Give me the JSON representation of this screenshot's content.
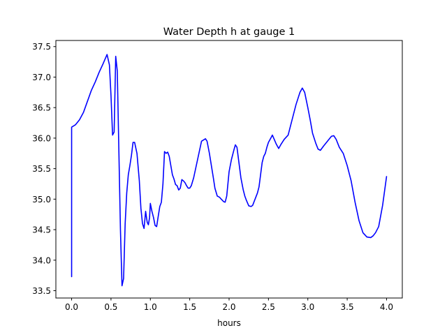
{
  "chart_data": {
    "type": "line",
    "title": "Water Depth h at gauge 1",
    "xlabel": "hours",
    "ylabel": "",
    "xlim": [
      -0.2,
      4.2
    ],
    "ylim": [
      33.38,
      37.6
    ],
    "xticks": [
      0.0,
      0.5,
      1.0,
      1.5,
      2.0,
      2.5,
      3.0,
      3.5,
      4.0
    ],
    "xtick_labels": [
      "0.0",
      "0.5",
      "1.0",
      "1.5",
      "2.0",
      "2.5",
      "3.0",
      "3.5",
      "4.0"
    ],
    "yticks": [
      33.5,
      34.0,
      34.5,
      35.0,
      35.5,
      36.0,
      36.5,
      37.0,
      37.5
    ],
    "ytick_labels": [
      "33.5",
      "34.0",
      "34.5",
      "35.0",
      "35.5",
      "36.0",
      "36.5",
      "37.0",
      "37.5"
    ],
    "grid": false,
    "line_color": "#0000ff",
    "series": [
      {
        "name": "",
        "x": [
          0.0,
          0.0,
          0.0,
          0.05,
          0.1,
          0.15,
          0.2,
          0.25,
          0.3,
          0.35,
          0.4,
          0.45,
          0.48,
          0.5,
          0.52,
          0.54,
          0.56,
          0.58,
          0.6,
          0.62,
          0.64,
          0.66,
          0.68,
          0.7,
          0.72,
          0.74,
          0.76,
          0.78,
          0.8,
          0.83,
          0.86,
          0.88,
          0.9,
          0.92,
          0.94,
          0.96,
          0.975,
          0.99,
          1.0,
          1.02,
          1.04,
          1.06,
          1.08,
          1.1,
          1.12,
          1.14,
          1.16,
          1.18,
          1.2,
          1.22,
          1.24,
          1.26,
          1.28,
          1.3,
          1.32,
          1.34,
          1.36,
          1.38,
          1.4,
          1.42,
          1.44,
          1.46,
          1.48,
          1.5,
          1.52,
          1.55,
          1.6,
          1.65,
          1.7,
          1.72,
          1.75,
          1.8,
          1.82,
          1.85,
          1.88,
          1.9,
          1.93,
          1.95,
          1.97,
          2.0,
          2.03,
          2.06,
          2.08,
          2.1,
          2.13,
          2.15,
          2.18,
          2.2,
          2.22,
          2.25,
          2.28,
          2.3,
          2.33,
          2.36,
          2.38,
          2.4,
          2.42,
          2.44,
          2.46,
          2.48,
          2.5,
          2.53,
          2.55,
          2.58,
          2.6,
          2.63,
          2.66,
          2.7,
          2.75,
          2.8,
          2.85,
          2.9,
          2.93,
          2.96,
          3.0,
          3.03,
          3.06,
          3.1,
          3.13,
          3.16,
          3.2,
          3.25,
          3.3,
          3.33,
          3.36,
          3.4,
          3.45,
          3.5,
          3.55,
          3.6,
          3.65,
          3.7,
          3.75,
          3.8,
          3.83,
          3.86,
          3.9,
          3.95,
          4.0
        ],
        "y": [
          33.73,
          36.16,
          36.18,
          36.22,
          36.3,
          36.42,
          36.6,
          36.78,
          36.92,
          37.08,
          37.22,
          37.37,
          37.2,
          36.7,
          36.05,
          36.1,
          37.34,
          37.1,
          35.8,
          34.5,
          33.58,
          33.7,
          34.6,
          35.1,
          35.4,
          35.55,
          35.72,
          35.93,
          35.93,
          35.75,
          35.3,
          34.85,
          34.6,
          34.52,
          34.8,
          34.62,
          34.58,
          34.7,
          34.93,
          34.8,
          34.7,
          34.57,
          34.55,
          34.72,
          34.88,
          34.95,
          35.25,
          35.78,
          35.75,
          35.77,
          35.7,
          35.55,
          35.4,
          35.33,
          35.24,
          35.22,
          35.15,
          35.18,
          35.32,
          35.3,
          35.27,
          35.22,
          35.18,
          35.18,
          35.22,
          35.35,
          35.65,
          35.95,
          35.99,
          35.95,
          35.75,
          35.35,
          35.18,
          35.05,
          35.03,
          35.0,
          34.96,
          34.95,
          35.05,
          35.45,
          35.65,
          35.8,
          35.89,
          35.85,
          35.55,
          35.35,
          35.15,
          35.05,
          34.98,
          34.89,
          34.88,
          34.9,
          35.0,
          35.1,
          35.2,
          35.4,
          35.6,
          35.7,
          35.75,
          35.85,
          35.93,
          36.0,
          36.05,
          35.96,
          35.9,
          35.83,
          35.9,
          35.98,
          36.05,
          36.3,
          36.55,
          36.75,
          36.82,
          36.75,
          36.5,
          36.3,
          36.08,
          35.92,
          35.82,
          35.8,
          35.87,
          35.95,
          36.03,
          36.04,
          35.98,
          35.85,
          35.75,
          35.55,
          35.3,
          34.95,
          34.65,
          34.45,
          34.38,
          34.37,
          34.4,
          34.45,
          34.55,
          34.9,
          35.37
        ]
      }
    ]
  }
}
